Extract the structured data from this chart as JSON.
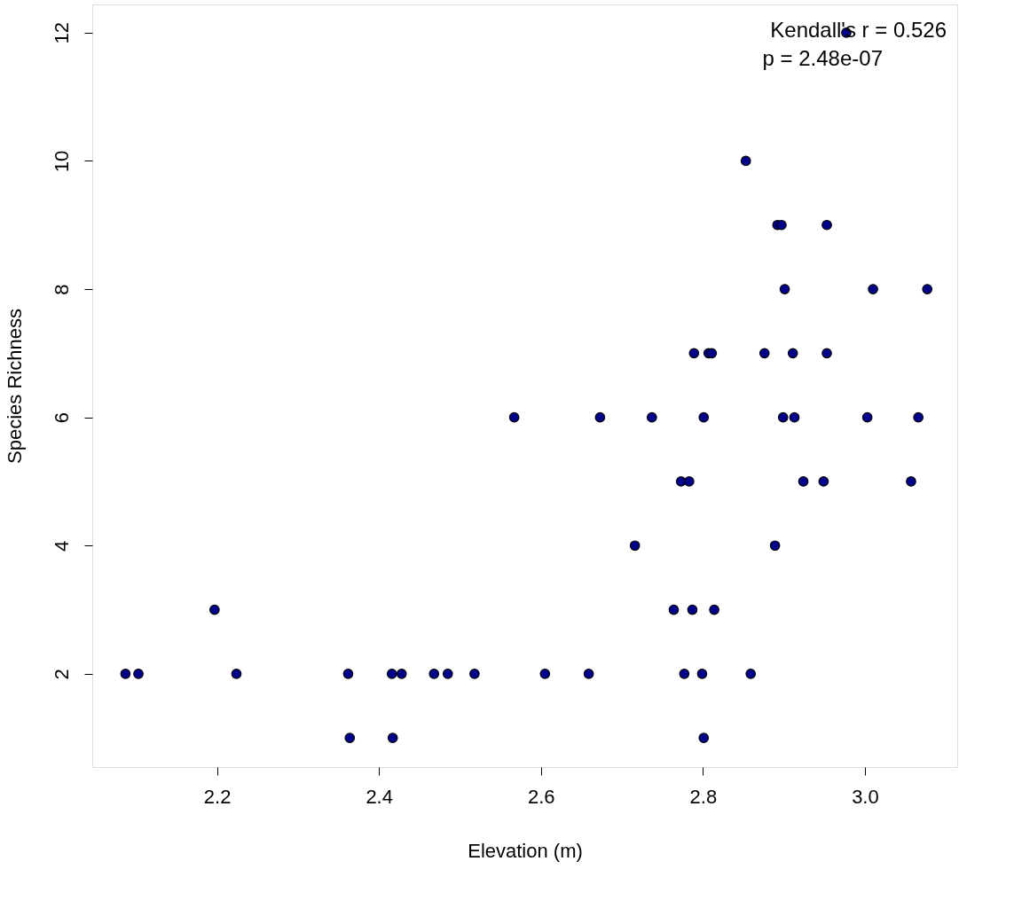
{
  "chart_data": {
    "type": "scatter",
    "xlabel": "Elevation (m)",
    "ylabel": "Species Richness",
    "annotations": [
      "Kendall's r = 0.526",
      "p = 2.48e-07"
    ],
    "x": [
      2.087,
      2.103,
      2.197,
      2.224,
      2.362,
      2.364,
      2.416,
      2.417,
      2.428,
      2.468,
      2.485,
      2.518,
      2.567,
      2.605,
      2.659,
      2.673,
      2.716,
      2.737,
      2.764,
      2.773,
      2.783,
      2.777,
      2.787,
      2.789,
      2.801,
      2.799,
      2.801,
      2.807,
      2.811,
      2.814,
      2.853,
      2.859,
      2.876,
      2.889,
      2.892,
      2.897,
      2.899,
      2.901,
      2.911,
      2.913,
      2.924,
      2.949,
      2.953,
      2.953,
      2.977,
      3.003,
      3.01,
      3.057,
      3.066,
      3.077
    ],
    "series": [
      {
        "color": "#00008b",
        "values": [
          2,
          2,
          3,
          2,
          2,
          1,
          2,
          1,
          2,
          2,
          2,
          2,
          6,
          2,
          2,
          6,
          4,
          6,
          3,
          5,
          5,
          2,
          3,
          7,
          6,
          2,
          1,
          7,
          7,
          3,
          10,
          2,
          7,
          4,
          9,
          9,
          6,
          8,
          7,
          6,
          5,
          5,
          9,
          7,
          12,
          6,
          8,
          5,
          6,
          8
        ]
      }
    ],
    "xlim": [
      2.046,
      3.114
    ],
    "ylim": [
      0.546,
      12.44
    ],
    "xticks": [
      2.2,
      2.4,
      2.6,
      2.8,
      {
        "value": 3,
        "label": "3.0"
      }
    ],
    "yticks": [
      2,
      4,
      6,
      8,
      10,
      12
    ],
    "marker": "circle",
    "grid": false
  }
}
